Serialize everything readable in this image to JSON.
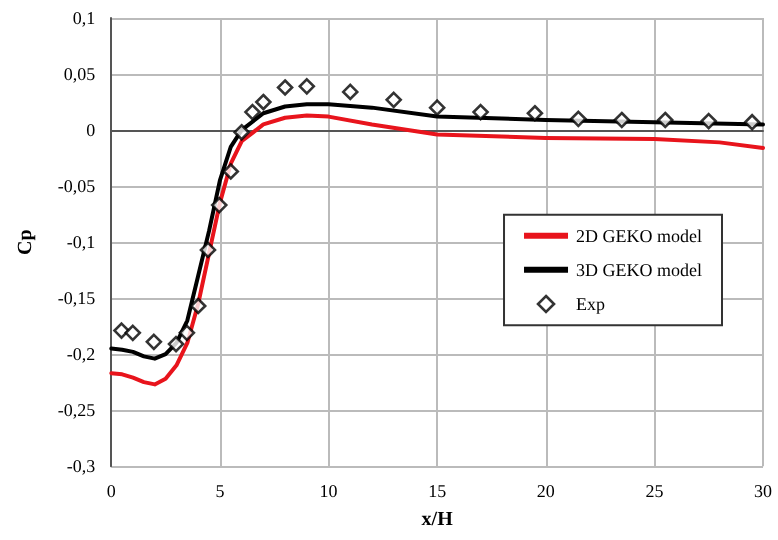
{
  "chart_data": {
    "type": "line",
    "xlabel": "x/H",
    "ylabel": "Cp",
    "xlim": [
      0,
      30
    ],
    "xticks": [
      0,
      5,
      10,
      15,
      20,
      25,
      30
    ],
    "ylim": [
      -0.3,
      0.1
    ],
    "yticks": [
      {
        "value": -0.3,
        "label": "-0,3"
      },
      {
        "value": -0.25,
        "label": "-0,25"
      },
      {
        "value": -0.2,
        "label": "-0,2"
      },
      {
        "value": -0.15,
        "label": "-0,15"
      },
      {
        "value": -0.1,
        "label": "-0,1"
      },
      {
        "value": -0.05,
        "label": "-0,05"
      },
      {
        "value": 0,
        "label": "0"
      },
      {
        "value": 0.05,
        "label": "0,05"
      },
      {
        "value": 0.1,
        "label": "0,1"
      }
    ],
    "grid": true,
    "legend": "right",
    "series": [
      {
        "name": "2D GEKO model",
        "color": "#e8141c",
        "marker": "none",
        "line_style": "solid",
        "x": [
          0,
          0.5,
          1,
          1.5,
          2,
          2.5,
          3,
          3.5,
          4,
          4.5,
          5,
          5.5,
          6,
          7,
          8,
          9,
          10,
          12,
          15,
          20,
          25,
          28,
          30
        ],
        "values": [
          -0.217,
          -0.218,
          -0.221,
          -0.225,
          -0.227,
          -0.222,
          -0.21,
          -0.19,
          -0.155,
          -0.11,
          -0.065,
          -0.03,
          -0.01,
          0.005,
          0.011,
          0.013,
          0.012,
          0.005,
          -0.004,
          -0.007,
          -0.008,
          -0.011,
          -0.016
        ]
      },
      {
        "name": "3D GEKO model",
        "color": "#000000",
        "marker": "none",
        "line_style": "solid",
        "x": [
          0,
          0.5,
          1,
          1.5,
          2,
          2.5,
          3,
          3.5,
          4,
          4.5,
          5,
          5.5,
          6,
          7,
          8,
          9,
          10,
          12,
          15,
          20,
          25,
          30
        ],
        "values": [
          -0.195,
          -0.196,
          -0.198,
          -0.202,
          -0.204,
          -0.2,
          -0.19,
          -0.17,
          -0.13,
          -0.09,
          -0.045,
          -0.015,
          0.0,
          0.015,
          0.021,
          0.023,
          0.023,
          0.02,
          0.012,
          0.009,
          0.007,
          0.005
        ]
      },
      {
        "name": "Exp",
        "type": "scatter",
        "color": "#000000",
        "marker": "diamond",
        "x": [
          0.47,
          0.99,
          1.96,
          2.98,
          3.48,
          4.0,
          4.45,
          4.97,
          5.5,
          6.0,
          6.5,
          7.0,
          8.0,
          9.0,
          11.0,
          13.0,
          15.0,
          17.0,
          19.5,
          21.5,
          23.5,
          25.5,
          27.5,
          29.5
        ],
        "values": [
          -0.179,
          -0.181,
          -0.189,
          -0.191,
          -0.181,
          -0.157,
          -0.107,
          -0.067,
          -0.037,
          -0.002,
          0.016,
          0.025,
          0.038,
          0.039,
          0.034,
          0.027,
          0.02,
          0.016,
          0.015,
          0.01,
          0.009,
          0.009,
          0.008,
          0.007
        ]
      }
    ]
  }
}
